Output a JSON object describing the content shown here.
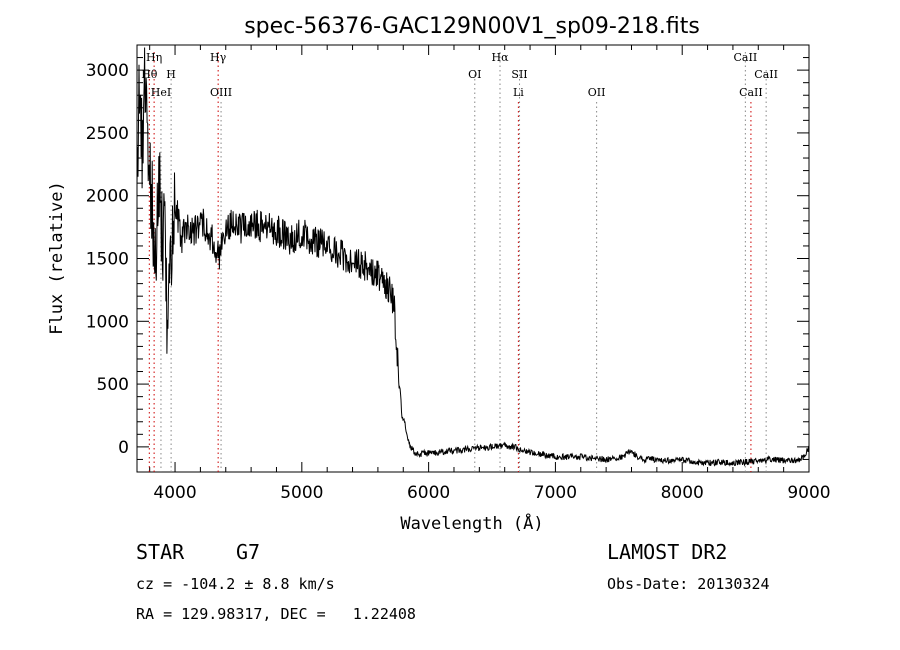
{
  "chart_data": {
    "type": "line",
    "title": "spec-56376-GAC129N00V1_sp09-218.fits",
    "xlabel": "Wavelength (Å)",
    "ylabel": "Flux (relative)",
    "xlim": [
      3700,
      9000
    ],
    "ylim": [
      -200,
      3200
    ],
    "x_ticks": [
      4000,
      5000,
      6000,
      7000,
      8000,
      9000
    ],
    "y_ticks": [
      0,
      500,
      1000,
      1500,
      2000,
      2500,
      3000
    ],
    "grid": false,
    "line_color": "#000000",
    "spectrum": [
      [
        3700,
        2300
      ],
      [
        3720,
        2850
      ],
      [
        3740,
        2400
      ],
      [
        3760,
        2950
      ],
      [
        3780,
        2600
      ],
      [
        3800,
        2150
      ],
      [
        3820,
        1900
      ],
      [
        3840,
        1300
      ],
      [
        3860,
        1800
      ],
      [
        3880,
        2050
      ],
      [
        3900,
        1600
      ],
      [
        3920,
        1950
      ],
      [
        3940,
        900
      ],
      [
        3960,
        1400
      ],
      [
        3980,
        1800
      ],
      [
        4000,
        1950
      ],
      [
        4050,
        1650
      ],
      [
        4100,
        1800
      ],
      [
        4150,
        1700
      ],
      [
        4200,
        1800
      ],
      [
        4250,
        1750
      ],
      [
        4300,
        1650
      ],
      [
        4350,
        1500
      ],
      [
        4400,
        1750
      ],
      [
        4450,
        1800
      ],
      [
        4500,
        1720
      ],
      [
        4600,
        1800
      ],
      [
        4700,
        1740
      ],
      [
        4800,
        1720
      ],
      [
        4900,
        1660
      ],
      [
        5000,
        1690
      ],
      [
        5100,
        1640
      ],
      [
        5200,
        1600
      ],
      [
        5300,
        1540
      ],
      [
        5400,
        1460
      ],
      [
        5500,
        1440
      ],
      [
        5600,
        1380
      ],
      [
        5650,
        1300
      ],
      [
        5700,
        1270
      ],
      [
        5730,
        1100
      ],
      [
        5760,
        650
      ],
      [
        5790,
        250
      ],
      [
        5810,
        200
      ],
      [
        5830,
        80
      ],
      [
        5860,
        0
      ],
      [
        5900,
        -60
      ],
      [
        6000,
        -50
      ],
      [
        6100,
        -40
      ],
      [
        6200,
        -30
      ],
      [
        6300,
        -20
      ],
      [
        6400,
        -10
      ],
      [
        6500,
        0
      ],
      [
        6600,
        10
      ],
      [
        6700,
        -10
      ],
      [
        6800,
        -40
      ],
      [
        6900,
        -60
      ],
      [
        7000,
        -80
      ],
      [
        7100,
        -80
      ],
      [
        7200,
        -80
      ],
      [
        7300,
        -90
      ],
      [
        7400,
        -100
      ],
      [
        7500,
        -90
      ],
      [
        7600,
        -40
      ],
      [
        7650,
        -80
      ],
      [
        7700,
        -100
      ],
      [
        7800,
        -100
      ],
      [
        7900,
        -110
      ],
      [
        8000,
        -100
      ],
      [
        8100,
        -120
      ],
      [
        8200,
        -130
      ],
      [
        8300,
        -120
      ],
      [
        8400,
        -130
      ],
      [
        8500,
        -120
      ],
      [
        8600,
        -110
      ],
      [
        8700,
        -100
      ],
      [
        8800,
        -110
      ],
      [
        8900,
        -110
      ],
      [
        8950,
        -90
      ],
      [
        9000,
        -10
      ]
    ],
    "lines": [
      {
        "name": "Hη",
        "x": 3835,
        "color": "#cc0000",
        "label_row": 0
      },
      {
        "name": "Hθ",
        "x": 3797,
        "color": "#cc0000",
        "label_row": 1
      },
      {
        "name": "H",
        "x": 3969,
        "color": "#888888",
        "label_row": 1
      },
      {
        "name": "HeI",
        "x": 3889,
        "color": "#888888",
        "label_row": 2
      },
      {
        "name": "Hγ",
        "x": 4340,
        "color": "#cc0000",
        "label_row": 0
      },
      {
        "name": "OIII",
        "x": 4363,
        "color": "#888888",
        "label_row": 2
      },
      {
        "name": "OI",
        "x": 6364,
        "color": "#888888",
        "label_row": 1
      },
      {
        "name": "Hα",
        "x": 6563,
        "color": "#888888",
        "label_row": 0
      },
      {
        "name": "SII",
        "x": 6717,
        "color": "#888888",
        "label_row": 1
      },
      {
        "name": "Li",
        "x": 6708,
        "color": "#cc0000",
        "label_row": 2
      },
      {
        "name": "OII",
        "x": 7325,
        "color": "#888888",
        "label_row": 2
      },
      {
        "name": "CaII",
        "x": 8498,
        "color": "#888888",
        "label_row": 0
      },
      {
        "name": "CaII",
        "x": 8662,
        "color": "#888888",
        "label_row": 1
      },
      {
        "name": "CaII",
        "x": 8542,
        "color": "#cc0000",
        "label_row": 2
      }
    ]
  },
  "info": {
    "class_label": "STAR",
    "subclass": "G7",
    "survey": "LAMOST DR2",
    "cz": "cz = -104.2 ± 8.8 km/s",
    "obs_date": "Obs-Date: 20130324",
    "coords": "RA = 129.98317, DEC =   1.22408"
  }
}
